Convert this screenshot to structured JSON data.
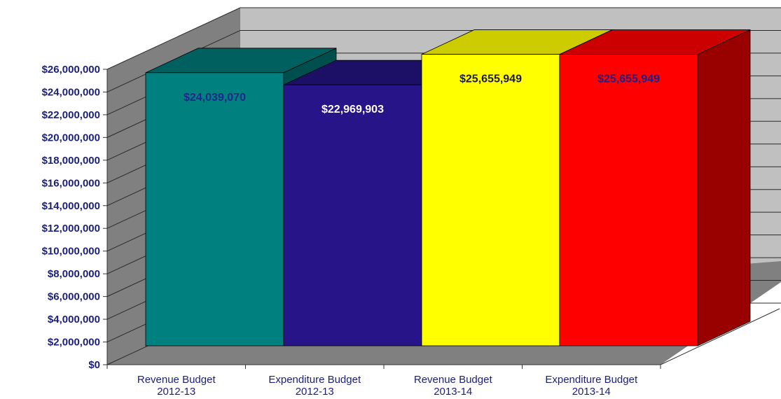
{
  "chart_data": {
    "type": "bar",
    "style": "3d-column",
    "categories": [
      [
        "Revenue Budget",
        "2012-13"
      ],
      [
        "Expenditure Budget",
        "2012-13"
      ],
      [
        "Revenue Budget",
        "2013-14"
      ],
      [
        "Expenditure Budget",
        "2013-14"
      ]
    ],
    "values": [
      24039070,
      22969903,
      25655949,
      25655949
    ],
    "value_labels": [
      "$24,039,070",
      "$22,969,903",
      "$25,655,949",
      "$25,655,949"
    ],
    "bar_colors": [
      "#00807f",
      "#261488",
      "#ffff00",
      "#ff0000"
    ],
    "bar_top_colors": [
      "#00605f",
      "#1c0f66",
      "#cccc00",
      "#cc0000"
    ],
    "bar_side_colors": [
      "#004f4f",
      "#140a4a",
      "#999900",
      "#990000"
    ],
    "label_colors": [
      "#1a2a8a",
      "#ffffff",
      "#1a1a3a",
      "#1a1f8a"
    ],
    "y_ticks": [
      0,
      2000000,
      4000000,
      6000000,
      8000000,
      10000000,
      12000000,
      14000000,
      16000000,
      18000000,
      20000000,
      22000000,
      24000000,
      26000000
    ],
    "y_tick_labels": [
      "$0",
      "$2,000,000",
      "$4,000,000",
      "$6,000,000",
      "$8,000,000",
      "$10,000,000",
      "$12,000,000",
      "$14,000,000",
      "$16,000,000",
      "$18,000,000",
      "$20,000,000",
      "$22,000,000",
      "$24,000,000",
      "$26,000,000"
    ],
    "ylim": [
      0,
      26000000
    ],
    "title": "",
    "xlabel": "",
    "ylabel": "",
    "grid": true,
    "legend": "none",
    "wall_color": "#c0c0c0",
    "side_wall_color": "#808080",
    "floor_color": "#808080",
    "axis_text_color": "#1a1f7a"
  }
}
